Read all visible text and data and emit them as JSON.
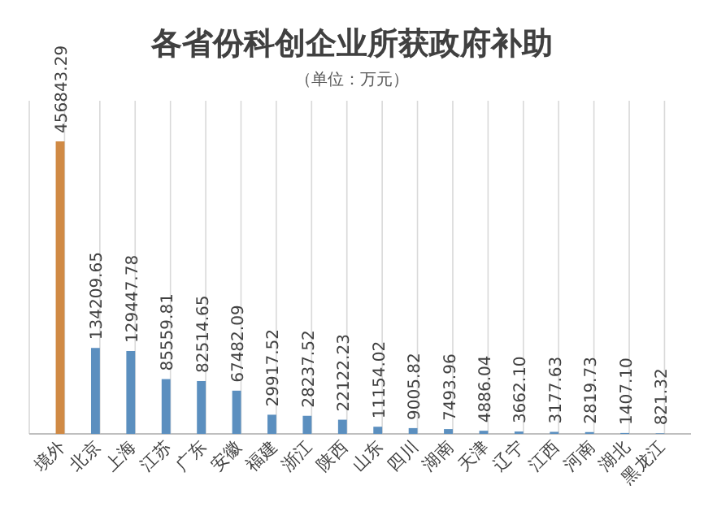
{
  "chart_data": {
    "type": "bar",
    "title": "各省份科创企业所获政府补助",
    "subtitle": "（单位：万元）",
    "categories": [
      "境外",
      "北京",
      "上海",
      "江苏",
      "广东",
      "安徽",
      "福建",
      "浙江",
      "陕西",
      "山东",
      "四川",
      "湖南",
      "天津",
      "辽宁",
      "江西",
      "河南",
      "湖北",
      "黑龙江"
    ],
    "values": [
      456843.29,
      134209.65,
      129447.78,
      85559.81,
      82514.65,
      67482.09,
      29917.52,
      28237.52,
      22122.23,
      11154.02,
      9005.82,
      7493.96,
      4886.04,
      3662.1,
      3177.63,
      2819.73,
      1407.1,
      821.32
    ],
    "value_labels": [
      "456843.29",
      "134209.65",
      "129447.78",
      "85559.81",
      "82514.65",
      "67482.09",
      "29917.52",
      "28237.52",
      "22122.23",
      "11154.02",
      "9005.82",
      "7493.96",
      "4886.04",
      "3662.10",
      "3177.63",
      "2819.73",
      "1407.10",
      "821.32"
    ],
    "colors": [
      "#d08a45",
      "#5b8fbf",
      "#5b8fbf",
      "#5b8fbf",
      "#5b8fbf",
      "#5b8fbf",
      "#5b8fbf",
      "#5b8fbf",
      "#5b8fbf",
      "#5b8fbf",
      "#5b8fbf",
      "#5b8fbf",
      "#5b8fbf",
      "#5b8fbf",
      "#5b8fbf",
      "#5b8fbf",
      "#5b8fbf",
      "#5b8fbf"
    ],
    "grid": "x"
  }
}
